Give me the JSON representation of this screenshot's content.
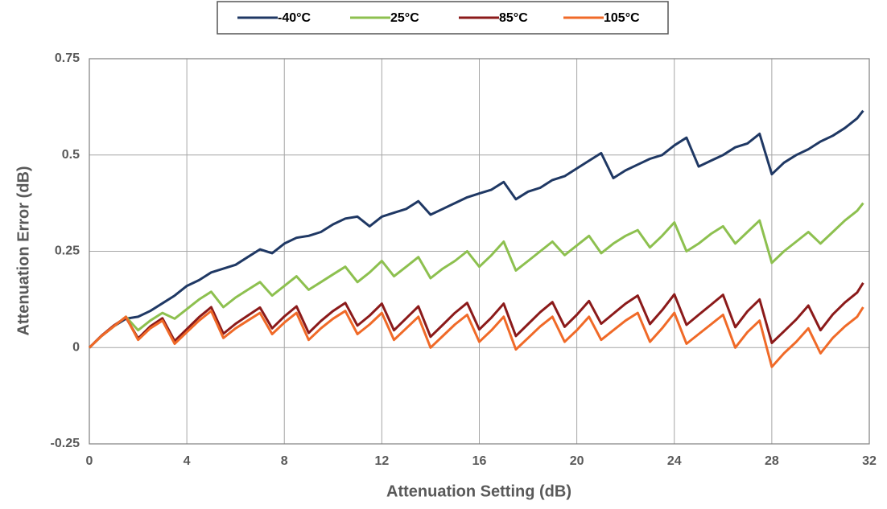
{
  "chart_data": {
    "type": "line",
    "xlabel": "Attenuation Setting (dB)",
    "ylabel": "Attenuation Error (dB)",
    "x": [
      0,
      0.5,
      1,
      1.5,
      2,
      2.5,
      3,
      3.5,
      4,
      4.5,
      5,
      5.5,
      6,
      6.5,
      7,
      7.5,
      8,
      8.5,
      9,
      9.5,
      10,
      10.5,
      11,
      11.5,
      12,
      12.5,
      13,
      13.5,
      14,
      14.5,
      15,
      15.5,
      16,
      16.5,
      17,
      17.5,
      18,
      18.5,
      19,
      19.5,
      20,
      20.5,
      21,
      21.5,
      22,
      22.5,
      23,
      23.5,
      24,
      24.5,
      25,
      25.5,
      26,
      26.5,
      27,
      27.5,
      28,
      28.5,
      29,
      29.5,
      30,
      30.5,
      31,
      31.5,
      31.75
    ],
    "series": [
      {
        "name": "-40°C",
        "color": "#1f3864",
        "values": [
          0,
          0.03,
          0.055,
          0.075,
          0.08,
          0.095,
          0.115,
          0.135,
          0.16,
          0.175,
          0.195,
          0.205,
          0.215,
          0.235,
          0.255,
          0.245,
          0.27,
          0.285,
          0.29,
          0.3,
          0.32,
          0.335,
          0.34,
          0.315,
          0.34,
          0.35,
          0.36,
          0.38,
          0.345,
          0.36,
          0.375,
          0.39,
          0.4,
          0.41,
          0.43,
          0.385,
          0.405,
          0.415,
          0.435,
          0.445,
          0.465,
          0.485,
          0.505,
          0.44,
          0.46,
          0.475,
          0.49,
          0.5,
          0.525,
          0.545,
          0.47,
          0.485,
          0.5,
          0.52,
          0.53,
          0.555,
          0.45,
          0.48,
          0.5,
          0.515,
          0.535,
          0.55,
          0.57,
          0.595,
          0.615
        ]
      },
      {
        "name": "25°C",
        "color": "#8dc04f",
        "values": [
          0,
          0.03,
          0.055,
          0.08,
          0.045,
          0.07,
          0.09,
          0.075,
          0.1,
          0.125,
          0.145,
          0.105,
          0.13,
          0.15,
          0.17,
          0.135,
          0.16,
          0.185,
          0.15,
          0.17,
          0.19,
          0.21,
          0.17,
          0.195,
          0.225,
          0.185,
          0.21,
          0.235,
          0.18,
          0.205,
          0.225,
          0.25,
          0.21,
          0.24,
          0.275,
          0.2,
          0.225,
          0.25,
          0.275,
          0.24,
          0.265,
          0.29,
          0.245,
          0.27,
          0.29,
          0.305,
          0.26,
          0.29,
          0.325,
          0.25,
          0.27,
          0.295,
          0.315,
          0.27,
          0.3,
          0.33,
          0.22,
          0.25,
          0.275,
          0.3,
          0.27,
          0.3,
          0.33,
          0.355,
          0.375
        ]
      },
      {
        "name": "85°C",
        "color": "#8b1a1a",
        "values": [
          0,
          0.031,
          0.057,
          0.078,
          0.024,
          0.055,
          0.076,
          0.017,
          0.048,
          0.079,
          0.105,
          0.036,
          0.062,
          0.083,
          0.104,
          0.05,
          0.081,
          0.107,
          0.038,
          0.069,
          0.095,
          0.116,
          0.057,
          0.083,
          0.114,
          0.045,
          0.076,
          0.107,
          0.028,
          0.059,
          0.09,
          0.116,
          0.047,
          0.078,
          0.114,
          0.03,
          0.061,
          0.092,
          0.118,
          0.054,
          0.085,
          0.121,
          0.062,
          0.088,
          0.114,
          0.135,
          0.061,
          0.097,
          0.138,
          0.059,
          0.085,
          0.111,
          0.137,
          0.053,
          0.094,
          0.125,
          0.012,
          0.042,
          0.073,
          0.109,
          0.045,
          0.086,
          0.117,
          0.143,
          0.168
        ]
      },
      {
        "name": "105°C",
        "color": "#f06a28",
        "values": [
          0,
          0.03,
          0.055,
          0.08,
          0.02,
          0.05,
          0.07,
          0.01,
          0.04,
          0.07,
          0.095,
          0.025,
          0.05,
          0.07,
          0.09,
          0.035,
          0.065,
          0.09,
          0.02,
          0.05,
          0.075,
          0.095,
          0.035,
          0.06,
          0.09,
          0.02,
          0.05,
          0.08,
          0.0,
          0.03,
          0.06,
          0.085,
          0.015,
          0.045,
          0.08,
          -0.005,
          0.025,
          0.055,
          0.08,
          0.015,
          0.045,
          0.08,
          0.02,
          0.045,
          0.07,
          0.09,
          0.015,
          0.05,
          0.09,
          0.01,
          0.035,
          0.06,
          0.085,
          0.0,
          0.04,
          0.07,
          -0.05,
          -0.015,
          0.015,
          0.05,
          -0.015,
          0.025,
          0.055,
          0.08,
          0.105
        ]
      }
    ],
    "xlim": [
      0,
      32
    ],
    "xticks": [
      0,
      4,
      8,
      12,
      16,
      20,
      24,
      28,
      32
    ],
    "ylim": [
      -0.25,
      0.75
    ],
    "yticks": [
      -0.25,
      0,
      0.25,
      0.5,
      0.75
    ],
    "grid": true,
    "legend": "top"
  }
}
